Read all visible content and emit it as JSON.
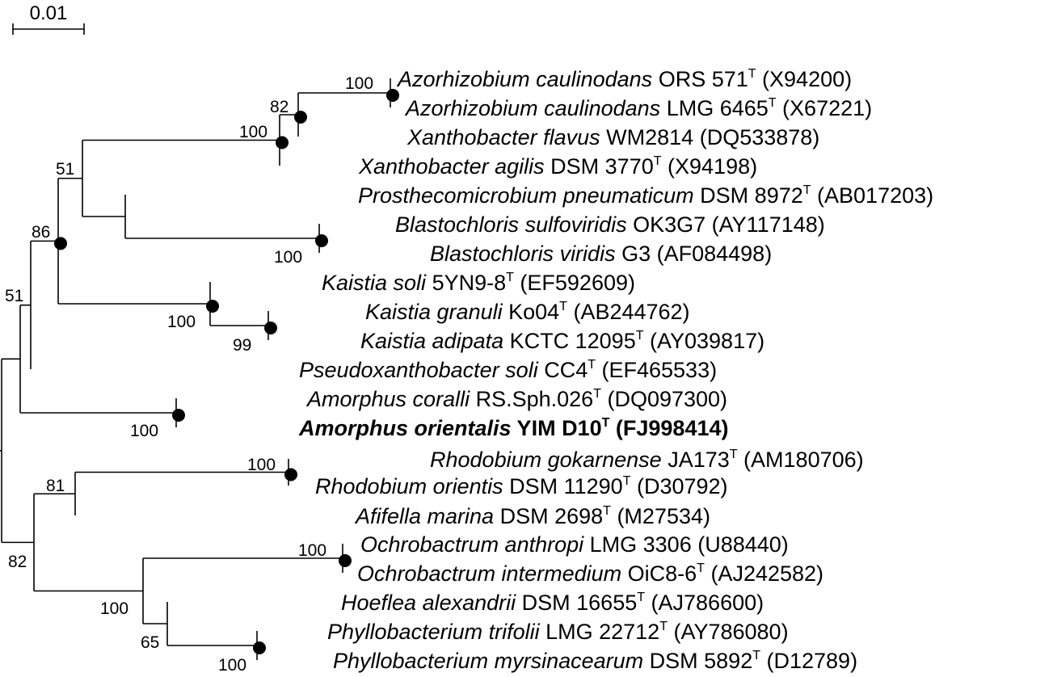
{
  "scale_bar": {
    "label": "0.01"
  },
  "taxa": [
    {
      "genus_species": "Azorhizobium caulinodans",
      "strain": "ORS 571",
      "type": true,
      "accession": "(X94200)"
    },
    {
      "genus_species": "Azorhizobium caulinodans",
      "strain": "LMG 6465",
      "type": true,
      "accession": "(X67221)"
    },
    {
      "genus_species": "Xanthobacter flavus",
      "strain": "WM2814",
      "type": false,
      "accession": "(DQ533878)"
    },
    {
      "genus_species": "Xanthobacter agilis",
      "strain": "DSM 3770",
      "type": true,
      "accession": "(X94198)"
    },
    {
      "genus_species": "Prosthecomicrobium pneumaticum",
      "strain": "DSM 8972",
      "type": true,
      "accession": "(AB017203)"
    },
    {
      "genus_species": "Blastochloris sulfoviridis",
      "strain": "OK3G7",
      "type": false,
      "accession": "(AY117148)"
    },
    {
      "genus_species": "Blastochloris viridis",
      "strain": "G3",
      "type": false,
      "accession": "(AF084498)"
    },
    {
      "genus_species": "Kaistia soli",
      "strain": "5YN9-8",
      "type": true,
      "accession": "(EF592609)"
    },
    {
      "genus_species": "Kaistia granuli",
      "strain": "Ko04",
      "type": true,
      "accession": "(AB244762)"
    },
    {
      "genus_species": "Kaistia adipata",
      "strain": "KCTC 12095",
      "type": true,
      "accession": "(AY039817)"
    },
    {
      "genus_species": "Pseudoxanthobacter soli",
      "strain": "CC4",
      "type": true,
      "accession": "(EF465533)"
    },
    {
      "genus_species": "Amorphus coralli",
      "strain": "RS.Sph.026",
      "type": true,
      "accession": "(DQ097300)"
    },
    {
      "genus_species": "Amorphus orientalis",
      "strain": "YIM D10",
      "type": true,
      "accession": "(FJ998414)",
      "bold": true
    },
    {
      "genus_species": "Rhodobium gokarnense",
      "strain": "JA173",
      "type": true,
      "accession": "(AM180706)"
    },
    {
      "genus_species": "Rhodobium orientis",
      "strain": "DSM 11290",
      "type": true,
      "accession": "(D30792)"
    },
    {
      "genus_species": "Afifella marina",
      "strain": "DSM 2698",
      "type": true,
      "accession": "(M27534)"
    },
    {
      "genus_species": "Ochrobactrum anthropi",
      "strain": "LMG 3306",
      "type": false,
      "accession": "(U88440)"
    },
    {
      "genus_species": "Ochrobactrum intermedium",
      "strain": "OiC8-6",
      "type": true,
      "accession": "(AJ242582)"
    },
    {
      "genus_species": "Hoeflea alexandrii",
      "strain": "DSM 16655",
      "type": true,
      "accession": "(AJ786600)"
    },
    {
      "genus_species": "Phyllobacterium trifolii",
      "strain": "LMG 22712",
      "type": true,
      "accession": "(AY786080)"
    },
    {
      "genus_species": "Phyllobacterium myrsinacearum",
      "strain": "DSM 5892",
      "type": true,
      "accession": "(D12789)"
    }
  ],
  "bootstrap": [
    {
      "value": "100",
      "node": "azorhizobium"
    },
    {
      "value": "82",
      "node": "azo-xflavus"
    },
    {
      "value": "100",
      "node": "xanthobacter"
    },
    {
      "value": "51",
      "node": "upper"
    },
    {
      "value": "100",
      "node": "blastochloris"
    },
    {
      "value": "86",
      "node": "a86"
    },
    {
      "value": "51",
      "node": "a51"
    },
    {
      "value": "100",
      "node": "kaistia"
    },
    {
      "value": "99",
      "node": "kaistia-pair"
    },
    {
      "value": "100",
      "node": "amorphus"
    },
    {
      "value": "100",
      "node": "rhodobium"
    },
    {
      "value": "81",
      "node": "rhodo-afifella"
    },
    {
      "value": "100",
      "node": "ochrobactrum"
    },
    {
      "value": "82",
      "node": "lower"
    },
    {
      "value": "100",
      "node": "ochro-hoef"
    },
    {
      "value": "65",
      "node": "hoef-phyllo"
    },
    {
      "value": "100",
      "node": "phyllobacterium"
    }
  ],
  "type_superscript": "T"
}
